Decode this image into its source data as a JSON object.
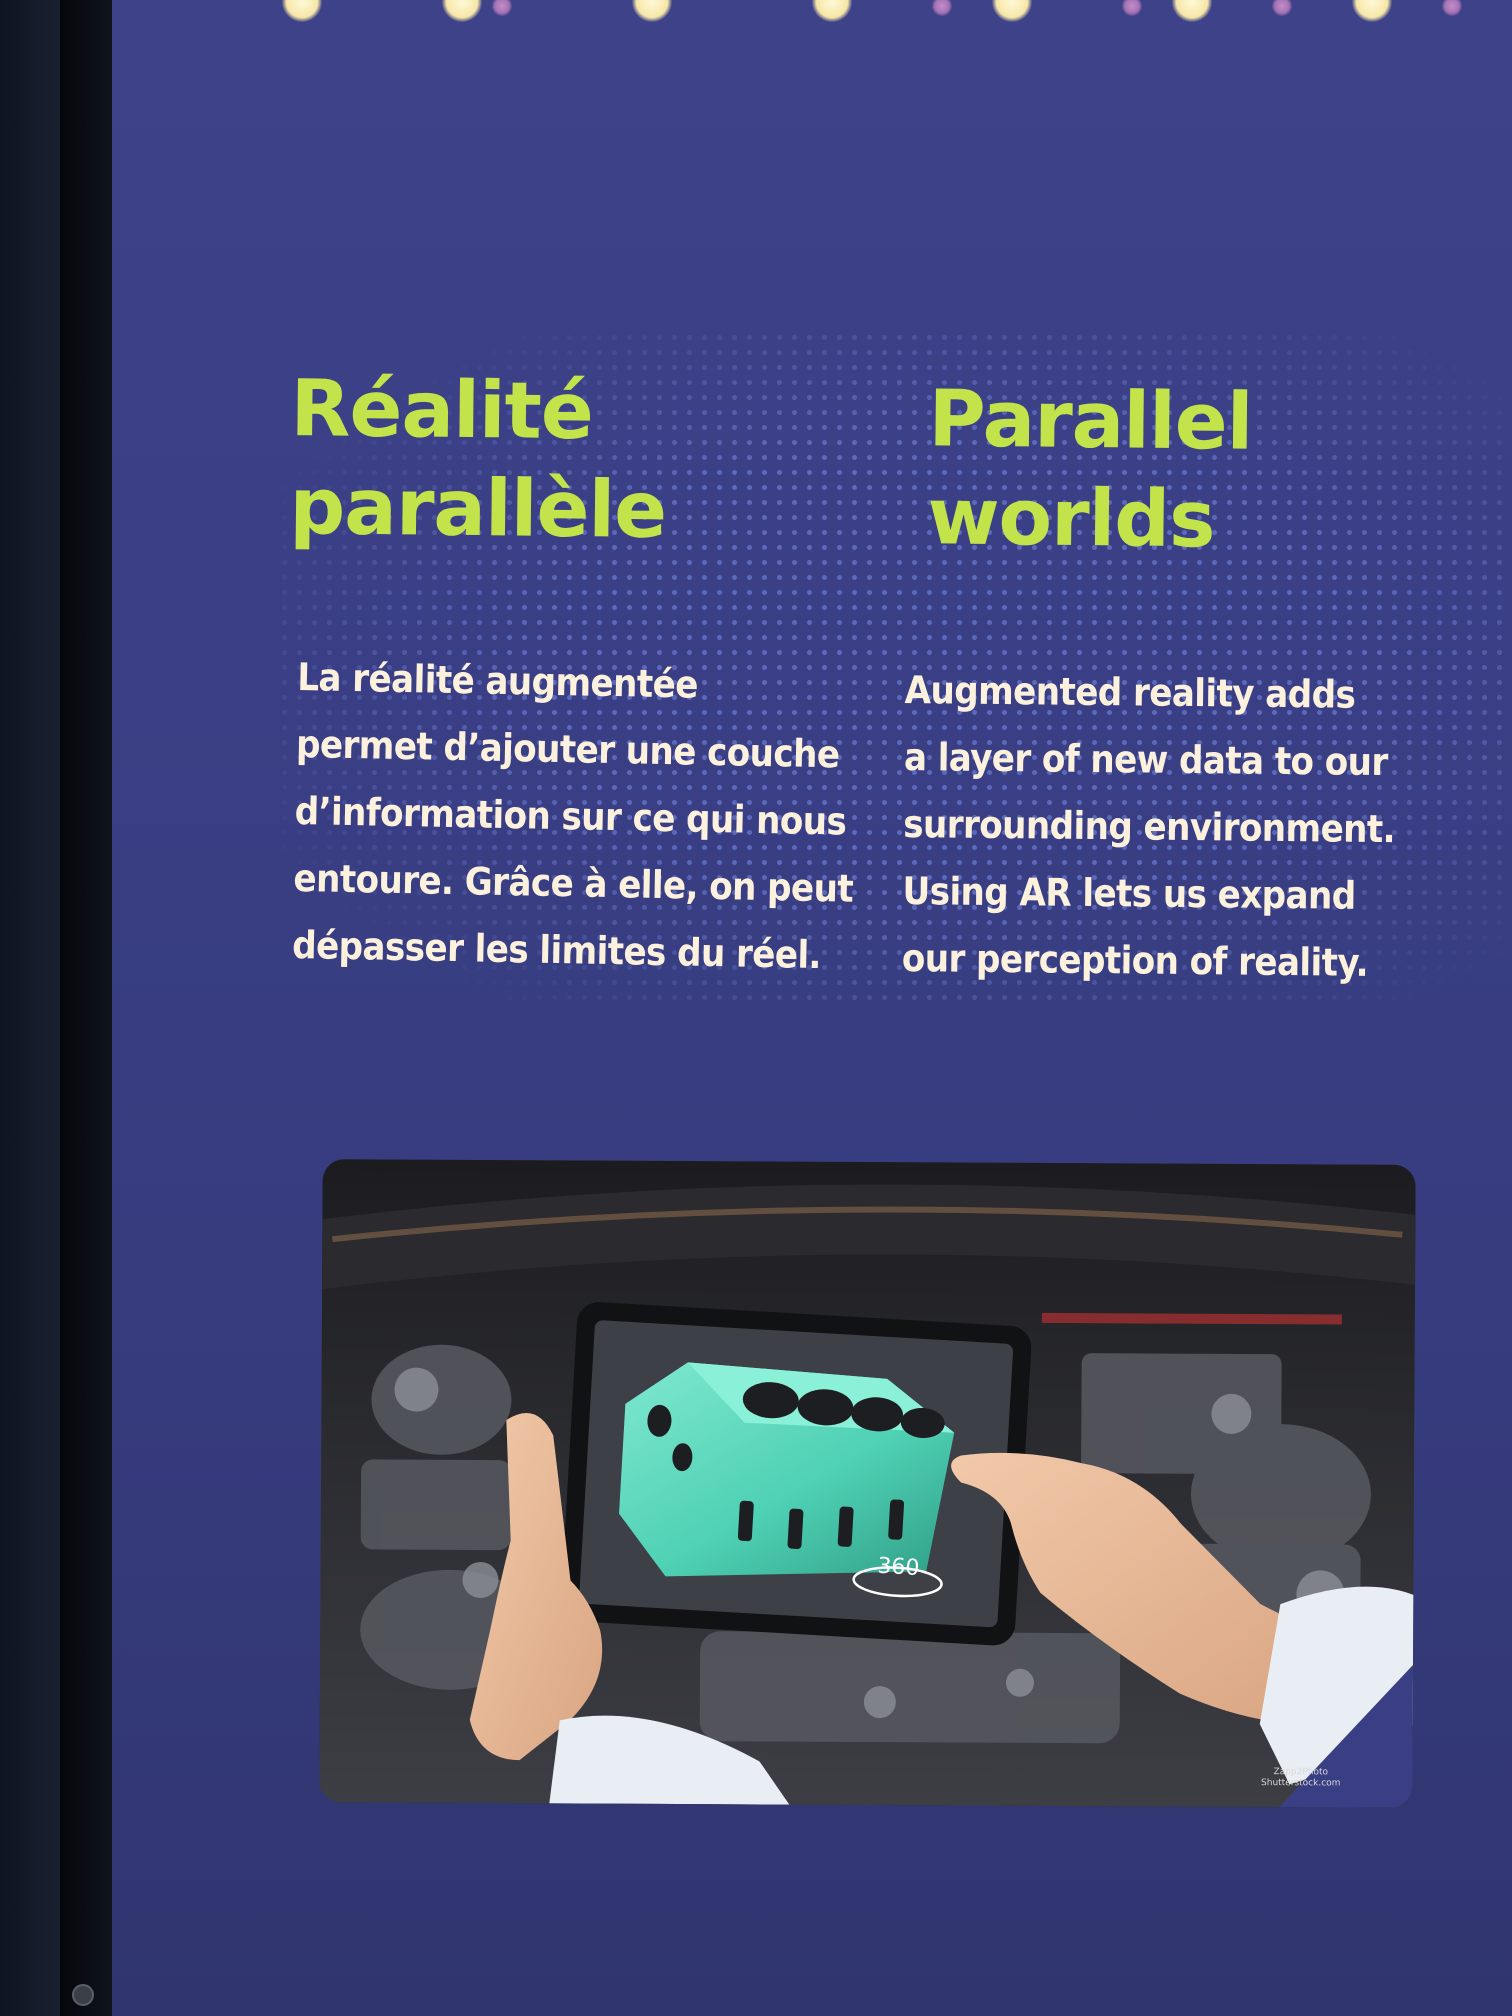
{
  "french": {
    "title": "Réalité\nparallèle",
    "lines": [
      "La réalité augmentée",
      "permet d’ajouter une couche",
      "d’information sur ce qui nous",
      "entoure. Grâce à elle, on peut",
      "dépasser les limites du réel."
    ]
  },
  "english": {
    "title": "Parallel\nworlds",
    "lines": [
      "Augmented reality adds",
      "a layer of new data to our",
      "surrounding environment.",
      "Using AR lets us expand",
      "our perception of reality."
    ]
  },
  "photo": {
    "rotation_label": "360",
    "credit": "Zapp2Photo\nShutterstock.com"
  },
  "colors": {
    "panel": "#3a3f85",
    "heading": "#c3e34a",
    "body_text": "#fbf1dc",
    "engine_block": "#4fd1b4"
  }
}
